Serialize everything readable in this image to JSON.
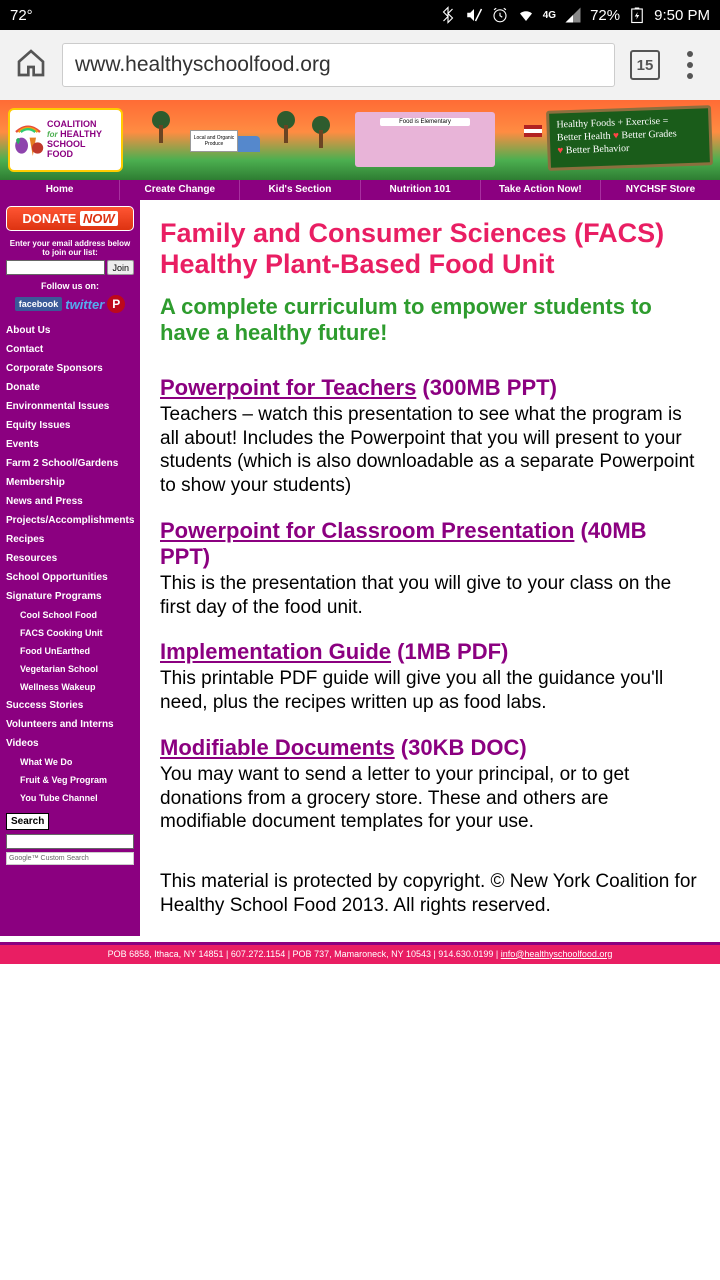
{
  "status": {
    "temp": "72°",
    "battery": "72%",
    "time": "9:50 PM",
    "net": "4G"
  },
  "browser": {
    "url": "www.healthyschoolfood.org",
    "tabs": "15"
  },
  "banner": {
    "logo": "COALITION for HEALTHY SCHOOL FOOD",
    "school_label": "Food is Elementary",
    "truck_label": "Local and Organic Produce",
    "chalkboard_l1": "Healthy Foods + Exercise =",
    "chalkboard_l2a": "Better Health",
    "chalkboard_l2b": "Better Grades",
    "chalkboard_l3": "Better Behavior"
  },
  "nav": [
    "Home",
    "Create Change",
    "Kid's Section",
    "Nutrition 101",
    "Take Action Now!",
    "NYCHSF Store"
  ],
  "sidebar": {
    "donate": "DONATE",
    "donate_now": "NOW",
    "email_prompt": "Enter your email address below to join our list:",
    "join": "Join",
    "follow": "Follow us on:",
    "social_fb": "facebook",
    "social_tw": "twitter",
    "social_pin": "P",
    "links": [
      "About Us",
      "Contact",
      "Corporate Sponsors",
      "Donate",
      "Environmental Issues",
      "Equity Issues",
      "Events",
      "Farm 2 School/Gardens",
      "Membership",
      "News and Press",
      "Projects/Accomplishments",
      "Recipes",
      "Resources",
      "School Opportunities",
      "Signature Programs"
    ],
    "sublinks1": [
      "Cool School Food",
      "FACS Cooking Unit",
      "Food UnEarthed",
      "Vegetarian School",
      "Wellness Wakeup"
    ],
    "links2": [
      "Success Stories",
      "Volunteers and Interns",
      "Videos"
    ],
    "sublinks2": [
      "What We Do",
      "Fruit & Veg Program",
      "You Tube Channel"
    ],
    "search": "Search",
    "google": "Google™ Custom Search"
  },
  "main": {
    "title": "Family and Consumer Sciences (FACS) Healthy Plant-Based Food Unit",
    "subtitle": "A complete curriculum to empower students to have a healthy future!",
    "resources": [
      {
        "link": "Powerpoint for Teachers",
        "size": " (300MB PPT)",
        "desc": "Teachers – watch this presentation to see what the program is all about! Includes the Powerpoint that you will present to your students (which is also downloadable as a separate Powerpoint to show your students)"
      },
      {
        "link": "Powerpoint for Classroom Presentation",
        "size": " (40MB PPT)",
        "desc": "This is the presentation that you will give to your class on the first day of the food unit."
      },
      {
        "link": "Implementation Guide",
        "size": " (1MB PDF)",
        "desc": "This printable PDF guide will give you all the guidance you'll need, plus the recipes written up as food labs."
      },
      {
        "link": "Modifiable Documents",
        "size": " (30KB DOC)",
        "desc": "You may want to send a letter to your principal, or to get donations from a grocery store. These and others are modifiable document templates for your use."
      }
    ],
    "copyright": "This material is protected by copyright. © New York Coalition for Healthy School Food 2013. All rights reserved."
  },
  "footer": {
    "text": "POB 6858, Ithaca, NY 14851  |  607.272.1154  |  POB 737, Mamaroneck, NY 10543  |  914.630.0199  |  ",
    "email": "info@healthyschoolfood.org"
  }
}
